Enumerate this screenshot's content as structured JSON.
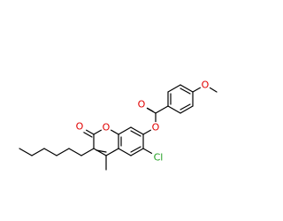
{
  "atoms": [
    {
      "label": "O"
    },
    {
      "label": "O"
    },
    {
      "label": "O"
    },
    {
      "label": "O"
    },
    {
      "label": "O"
    },
    {
      "label": "Cl"
    }
  ]
}
